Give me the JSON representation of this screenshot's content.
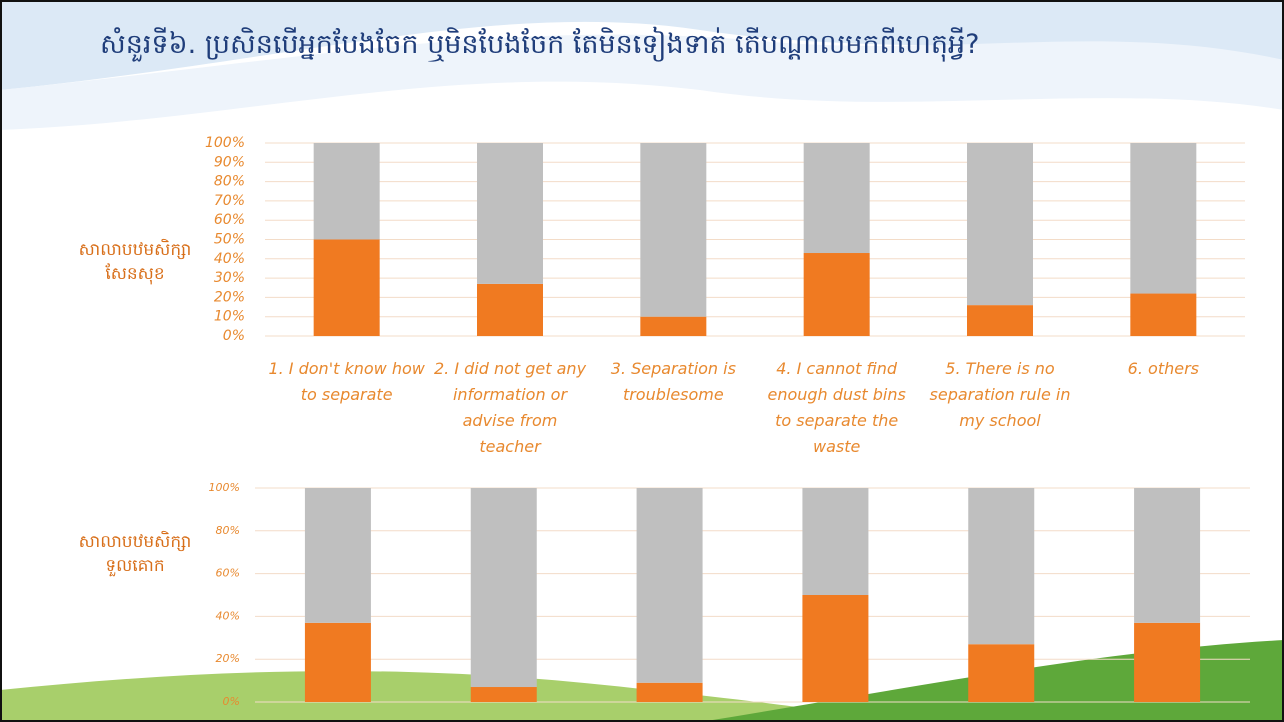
{
  "title": "សំនួរទី៦. ប្រសិនបើអ្នកបែងចែក ឬមិនបែងចែក តែមិនទៀងទាត់ តើបណ្ដាលមកពីហេតុអ្វី?",
  "chart_data": [
    {
      "type": "bar",
      "stacked": true,
      "ylabel": "សាលាបឋមសិក្សា សែនសុខ",
      "categories": [
        "1. I don't know how to separate",
        "2. I did not get any information or advise from teacher",
        "3. Separation is troublesome",
        "4. I cannot find enough dust bins to separate the waste",
        "5. There is no separation rule in my school",
        "6. others"
      ],
      "series": [
        {
          "color": "#f07a21",
          "values": [
            50,
            27,
            10,
            43,
            16,
            22
          ]
        },
        {
          "color": "#bfbfbf",
          "values": [
            50,
            73,
            90,
            57,
            84,
            78
          ]
        }
      ],
      "ylim": [
        0,
        100
      ],
      "yticks": [
        {
          "value": 0,
          "label": "0%"
        },
        {
          "value": 10,
          "label": "10%"
        },
        {
          "value": 20,
          "label": "20%"
        },
        {
          "value": 30,
          "label": "30%"
        },
        {
          "value": 40,
          "label": "40%"
        },
        {
          "value": 50,
          "label": "50%"
        },
        {
          "value": 60,
          "label": "60%"
        },
        {
          "value": 70,
          "label": "70%"
        },
        {
          "value": 80,
          "label": "80%"
        },
        {
          "value": 90,
          "label": "90%"
        },
        {
          "value": 100,
          "label": "100%"
        }
      ],
      "grid": true
    },
    {
      "type": "bar",
      "stacked": true,
      "ylabel": "សាលាបឋមសិក្សា ទួលគោក",
      "series": [
        {
          "color": "#f07a21",
          "values": [
            37,
            7,
            9,
            50,
            27,
            37
          ]
        },
        {
          "color": "#bfbfbf",
          "values": [
            63,
            93,
            91,
            50,
            73,
            63
          ]
        }
      ],
      "ylim": [
        0,
        100
      ],
      "yticks": [
        {
          "value": 0,
          "label": "0%"
        },
        {
          "value": 20,
          "label": "20%"
        },
        {
          "value": 40,
          "label": "40%"
        },
        {
          "value": 60,
          "label": "60%"
        },
        {
          "value": 80,
          "label": "80%"
        },
        {
          "value": 100,
          "label": "100%"
        }
      ],
      "grid": true
    }
  ]
}
